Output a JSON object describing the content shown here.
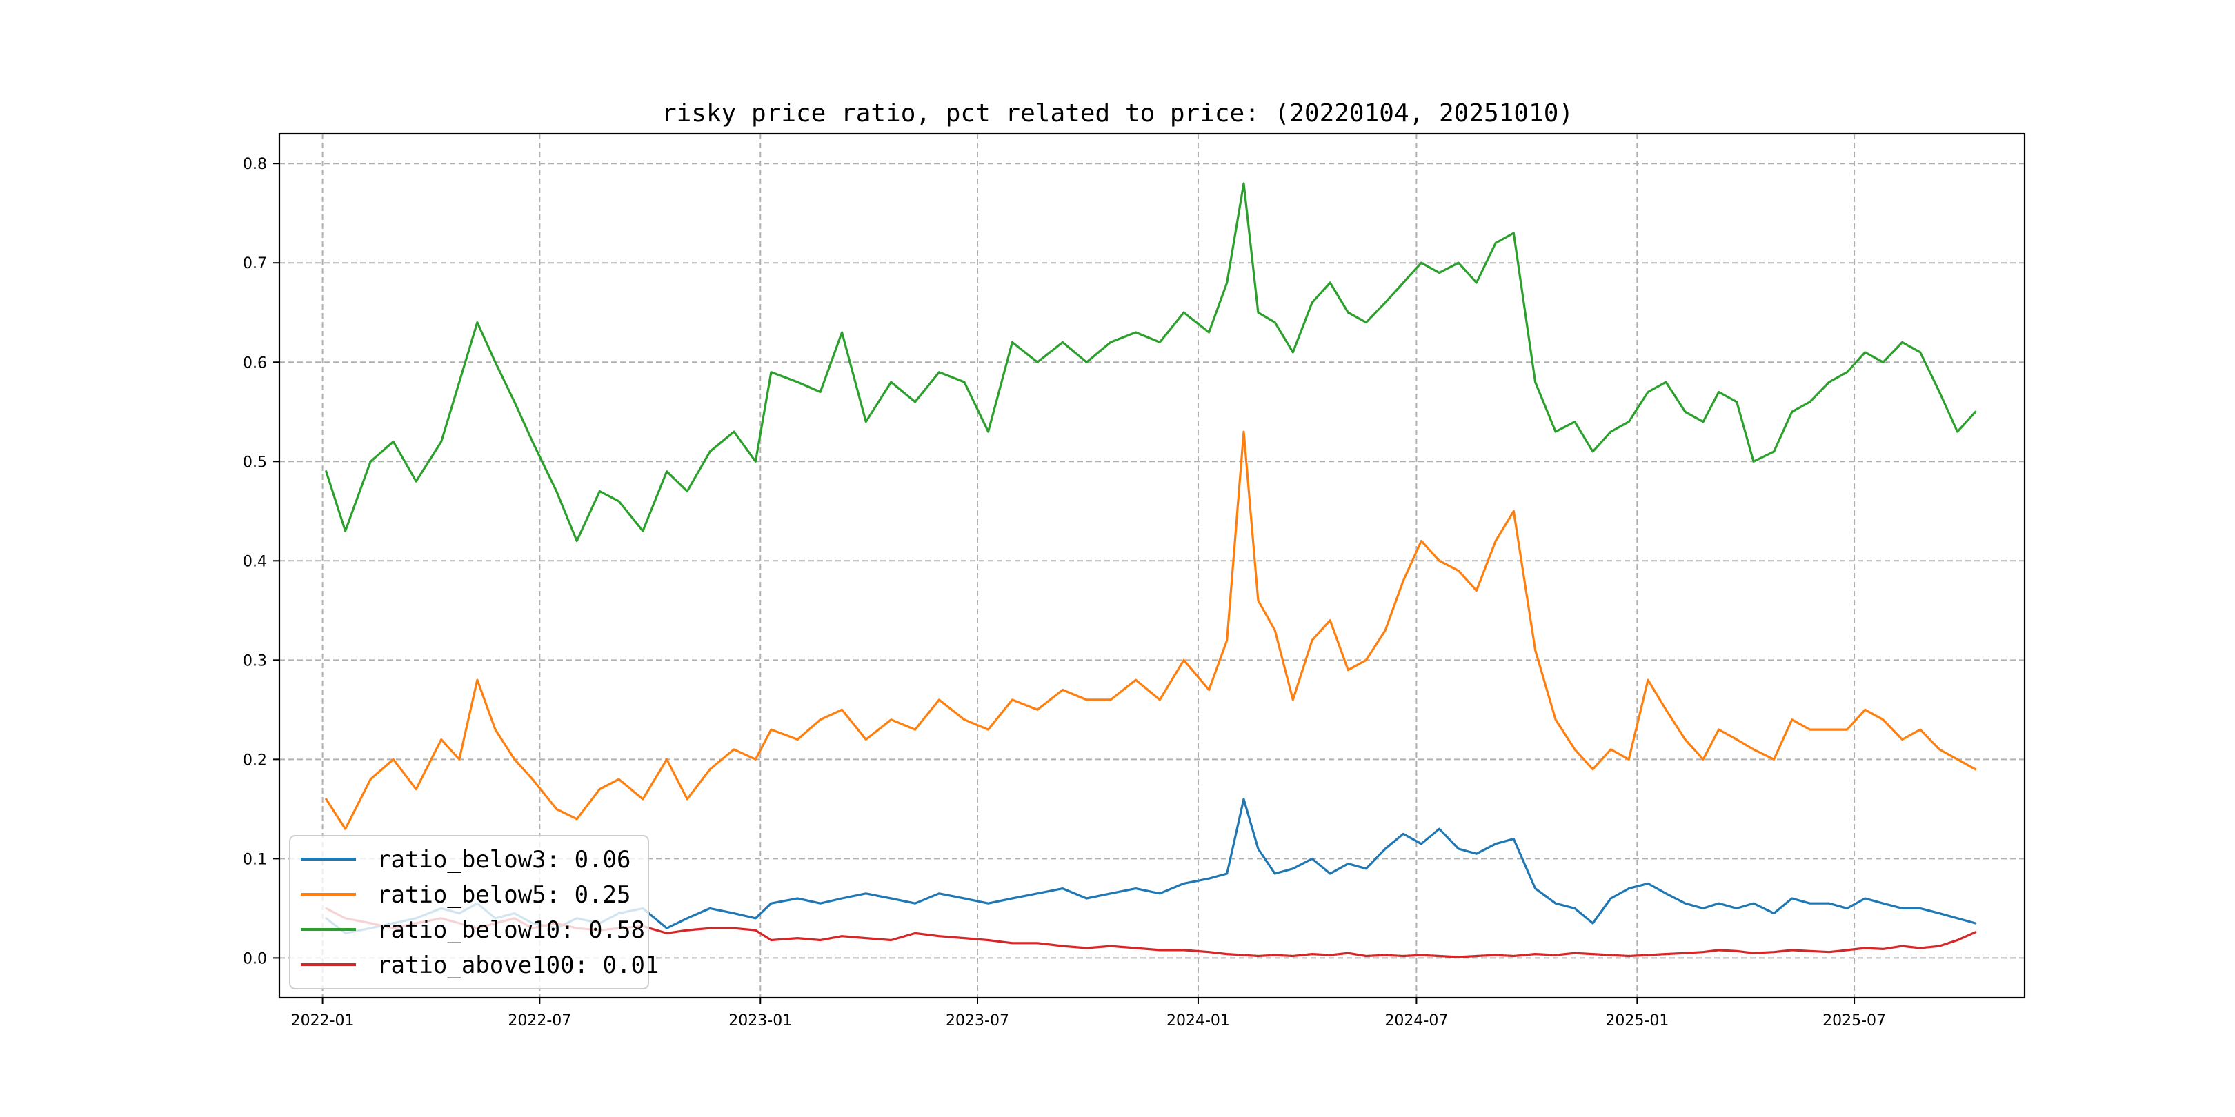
{
  "chart_data": {
    "type": "line",
    "title": "risky price ratio, pct related to price: (20220104, 20251010)",
    "xlabel": "",
    "ylabel": "",
    "x_range": [
      "2021-11-26",
      "2025-11-20"
    ],
    "ylim": [
      -0.04,
      0.83
    ],
    "grid": true,
    "legend_position": "lower-left",
    "x_ticks": [
      "2022-01",
      "2022-07",
      "2023-01",
      "2023-07",
      "2024-01",
      "2024-07",
      "2025-01",
      "2025-07"
    ],
    "y_ticks": [
      "0.0",
      "0.1",
      "0.2",
      "0.3",
      "0.4",
      "0.5",
      "0.6",
      "0.7",
      "0.8"
    ],
    "x": [
      "2022-01-04",
      "2022-01-20",
      "2022-02-10",
      "2022-03-01",
      "2022-03-20",
      "2022-04-10",
      "2022-04-25",
      "2022-05-10",
      "2022-05-25",
      "2022-06-10",
      "2022-06-25",
      "2022-07-15",
      "2022-08-01",
      "2022-08-20",
      "2022-09-05",
      "2022-09-25",
      "2022-10-15",
      "2022-11-01",
      "2022-11-20",
      "2022-12-10",
      "2022-12-28",
      "2023-01-10",
      "2023-02-01",
      "2023-02-20",
      "2023-03-10",
      "2023-03-30",
      "2023-04-20",
      "2023-05-10",
      "2023-05-30",
      "2023-06-20",
      "2023-07-10",
      "2023-07-30",
      "2023-08-20",
      "2023-09-10",
      "2023-09-30",
      "2023-10-20",
      "2023-11-10",
      "2023-11-30",
      "2023-12-20",
      "2024-01-10",
      "2024-01-25",
      "2024-02-08",
      "2024-02-20",
      "2024-03-05",
      "2024-03-20",
      "2024-04-05",
      "2024-04-20",
      "2024-05-05",
      "2024-05-20",
      "2024-06-05",
      "2024-06-20",
      "2024-07-05",
      "2024-07-20",
      "2024-08-05",
      "2024-08-20",
      "2024-09-05",
      "2024-09-20",
      "2024-10-08",
      "2024-10-25",
      "2024-11-10",
      "2024-11-25",
      "2024-12-10",
      "2024-12-25",
      "2025-01-10",
      "2025-01-25",
      "2025-02-10",
      "2025-02-25",
      "2025-03-10",
      "2025-03-25",
      "2025-04-08",
      "2025-04-25",
      "2025-05-10",
      "2025-05-25",
      "2025-06-10",
      "2025-06-25",
      "2025-07-10",
      "2025-07-25",
      "2025-08-10",
      "2025-08-25",
      "2025-09-10",
      "2025-09-25",
      "2025-10-10"
    ],
    "series": [
      {
        "name": "ratio_below3: 0.06",
        "color": "#1f77b4",
        "values": [
          0.04,
          0.025,
          0.03,
          0.035,
          0.04,
          0.05,
          0.045,
          0.055,
          0.04,
          0.045,
          0.035,
          0.03,
          0.04,
          0.035,
          0.045,
          0.05,
          0.03,
          0.04,
          0.05,
          0.045,
          0.04,
          0.055,
          0.06,
          0.055,
          0.06,
          0.065,
          0.06,
          0.055,
          0.065,
          0.06,
          0.055,
          0.06,
          0.065,
          0.07,
          0.06,
          0.065,
          0.07,
          0.065,
          0.075,
          0.08,
          0.085,
          0.16,
          0.11,
          0.085,
          0.09,
          0.1,
          0.085,
          0.095,
          0.09,
          0.11,
          0.125,
          0.115,
          0.13,
          0.11,
          0.105,
          0.115,
          0.12,
          0.07,
          0.055,
          0.05,
          0.035,
          0.06,
          0.07,
          0.075,
          0.065,
          0.055,
          0.05,
          0.055,
          0.05,
          0.055,
          0.045,
          0.06,
          0.055,
          0.055,
          0.05,
          0.06,
          0.055,
          0.05,
          0.05,
          0.045,
          0.04,
          0.035
        ]
      },
      {
        "name": "ratio_below5: 0.25",
        "color": "#ff7f0e",
        "values": [
          0.16,
          0.13,
          0.18,
          0.2,
          0.17,
          0.22,
          0.2,
          0.28,
          0.23,
          0.2,
          0.18,
          0.15,
          0.14,
          0.17,
          0.18,
          0.16,
          0.2,
          0.16,
          0.19,
          0.21,
          0.2,
          0.23,
          0.22,
          0.24,
          0.25,
          0.22,
          0.24,
          0.23,
          0.26,
          0.24,
          0.23,
          0.26,
          0.25,
          0.27,
          0.26,
          0.26,
          0.28,
          0.26,
          0.3,
          0.27,
          0.32,
          0.53,
          0.36,
          0.33,
          0.26,
          0.32,
          0.34,
          0.29,
          0.3,
          0.33,
          0.38,
          0.42,
          0.4,
          0.39,
          0.37,
          0.42,
          0.45,
          0.31,
          0.24,
          0.21,
          0.19,
          0.21,
          0.2,
          0.28,
          0.25,
          0.22,
          0.2,
          0.23,
          0.22,
          0.21,
          0.2,
          0.24,
          0.23,
          0.23,
          0.23,
          0.25,
          0.24,
          0.22,
          0.23,
          0.21,
          0.2,
          0.19
        ]
      },
      {
        "name": "ratio_below10: 0.58",
        "color": "#2ca02c",
        "values": [
          0.49,
          0.43,
          0.5,
          0.52,
          0.48,
          0.52,
          0.58,
          0.64,
          0.6,
          0.56,
          0.52,
          0.47,
          0.42,
          0.47,
          0.46,
          0.43,
          0.49,
          0.47,
          0.51,
          0.53,
          0.5,
          0.59,
          0.58,
          0.57,
          0.63,
          0.54,
          0.58,
          0.56,
          0.59,
          0.58,
          0.53,
          0.62,
          0.6,
          0.62,
          0.6,
          0.62,
          0.63,
          0.62,
          0.65,
          0.63,
          0.68,
          0.78,
          0.65,
          0.64,
          0.61,
          0.66,
          0.68,
          0.65,
          0.64,
          0.66,
          0.68,
          0.7,
          0.69,
          0.7,
          0.68,
          0.72,
          0.73,
          0.58,
          0.53,
          0.54,
          0.51,
          0.53,
          0.54,
          0.57,
          0.58,
          0.55,
          0.54,
          0.57,
          0.56,
          0.5,
          0.51,
          0.55,
          0.56,
          0.58,
          0.59,
          0.61,
          0.6,
          0.62,
          0.61,
          0.57,
          0.53,
          0.55
        ]
      },
      {
        "name": "ratio_above100: 0.01",
        "color": "#d62728",
        "values": [
          0.05,
          0.04,
          0.035,
          0.03,
          0.035,
          0.04,
          0.035,
          0.03,
          0.035,
          0.04,
          0.03,
          0.035,
          0.03,
          0.028,
          0.03,
          0.032,
          0.025,
          0.028,
          0.03,
          0.03,
          0.028,
          0.018,
          0.02,
          0.018,
          0.022,
          0.02,
          0.018,
          0.025,
          0.022,
          0.02,
          0.018,
          0.015,
          0.015,
          0.012,
          0.01,
          0.012,
          0.01,
          0.008,
          0.008,
          0.006,
          0.004,
          0.003,
          0.002,
          0.003,
          0.002,
          0.004,
          0.003,
          0.005,
          0.002,
          0.003,
          0.002,
          0.003,
          0.002,
          0.001,
          0.002,
          0.003,
          0.002,
          0.004,
          0.003,
          0.005,
          0.004,
          0.003,
          0.002,
          0.003,
          0.004,
          0.005,
          0.006,
          0.008,
          0.007,
          0.005,
          0.006,
          0.008,
          0.007,
          0.006,
          0.008,
          0.01,
          0.009,
          0.012,
          0.01,
          0.012,
          0.018,
          0.026
        ]
      }
    ]
  }
}
